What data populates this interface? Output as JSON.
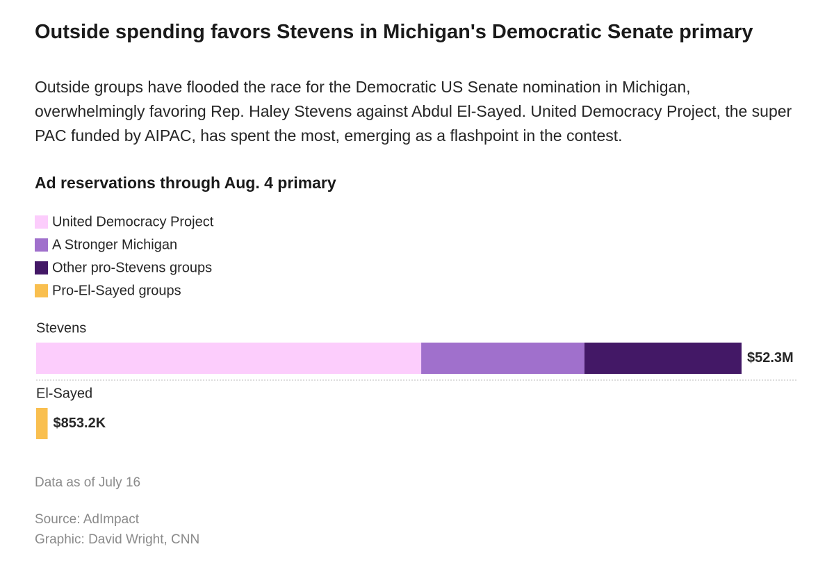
{
  "chart_data": {
    "type": "stacked-bar-horizontal",
    "title": "Outside spending favors Stevens in Michigan's Democratic Senate primary",
    "subtitle": "Outside groups have flooded the race for the Democratic US Senate nomination in Michigan, overwhelmingly favoring Rep. Haley Stevens against Abdul El-Sayed. United Democracy Project, the super PAC funded by AIPAC, has spent the most, emerging as a flashpoint in the contest.",
    "heading": "Ad reservations through Aug. 4 primary",
    "categories": [
      "Stevens",
      "El-Sayed"
    ],
    "series": [
      {
        "name": "United Democracy Project",
        "color": "#fccdfc",
        "values": [
          28550000,
          null
        ]
      },
      {
        "name": "A Stronger Michigan",
        "color": "#a070cc",
        "values": [
          12100000,
          null
        ]
      },
      {
        "name": "Other pro-Stevens groups",
        "color": "#431866",
        "values": [
          11650000,
          null
        ]
      },
      {
        "name": "Pro-El-Sayed groups",
        "color": "#f9bf4f",
        "values": [
          null,
          853200
        ]
      }
    ],
    "totals": [
      52300000,
      853200
    ],
    "total_labels": [
      "$52.3M",
      "$853.2K"
    ],
    "notes": [
      "Data as of July 16",
      "Source: AdImpact",
      "Graphic: David Wright, CNN"
    ]
  }
}
